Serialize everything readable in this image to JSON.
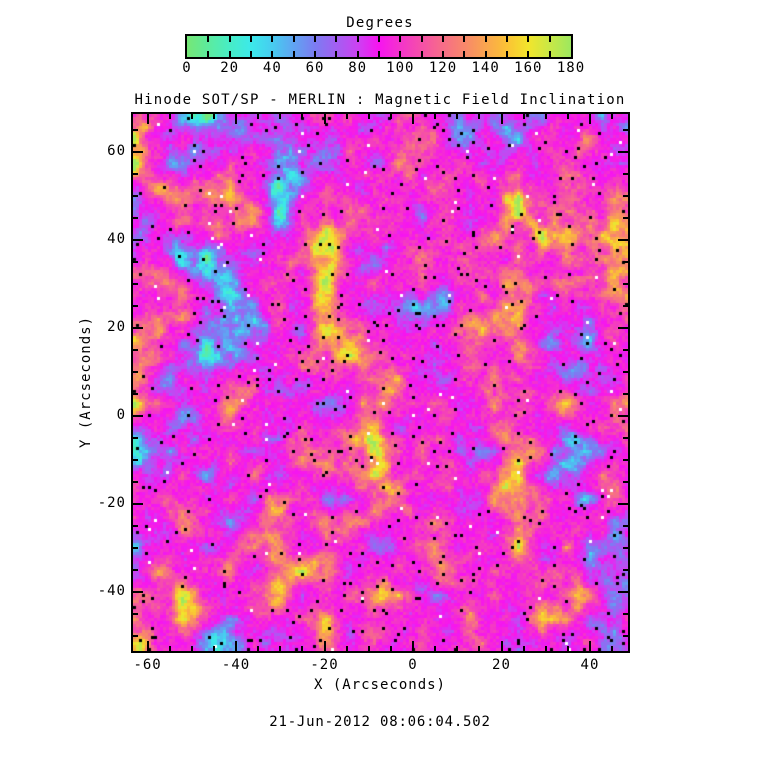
{
  "figure": {
    "background_color": "#ffffff",
    "text_color": "#000000"
  },
  "title": "Hinode SOT/SP - MERLIN : Magnetic Field Inclination",
  "timestamp": "21-Jun-2012 08:06:04.502",
  "colorbar": {
    "title": "Degrees",
    "min": 0,
    "max": 180,
    "tick_step": 10,
    "label_step": 20,
    "tick_labels": [
      "0",
      "20",
      "40",
      "60",
      "80",
      "100",
      "120",
      "140",
      "160",
      "180"
    ],
    "stops": [
      {
        "v": 0,
        "c": "#76e775"
      },
      {
        "v": 10,
        "c": "#5ceb9e"
      },
      {
        "v": 20,
        "c": "#47edc6"
      },
      {
        "v": 30,
        "c": "#3ce9ea"
      },
      {
        "v": 40,
        "c": "#47ccf0"
      },
      {
        "v": 50,
        "c": "#60a4f2"
      },
      {
        "v": 60,
        "c": "#7c7cf2"
      },
      {
        "v": 70,
        "c": "#a35ff2"
      },
      {
        "v": 80,
        "c": "#cb42f2"
      },
      {
        "v": 90,
        "c": "#f714f0"
      },
      {
        "v": 100,
        "c": "#f434cb"
      },
      {
        "v": 110,
        "c": "#f550a8"
      },
      {
        "v": 120,
        "c": "#f66d88"
      },
      {
        "v": 130,
        "c": "#f8876b"
      },
      {
        "v": 140,
        "c": "#f9a54f"
      },
      {
        "v": 150,
        "c": "#fbc235"
      },
      {
        "v": 160,
        "c": "#f2e52c"
      },
      {
        "v": 170,
        "c": "#c9e846"
      },
      {
        "v": 180,
        "c": "#9de85f"
      }
    ]
  },
  "chart_data": {
    "type": "heatmap",
    "title": "Hinode SOT/SP - MERLIN : Magnetic Field Inclination",
    "xlabel": "X (Arcseconds)",
    "ylabel": "Y (Arcseconds)",
    "xlim": [
      -63.3,
      48.6
    ],
    "ylim": [
      -53.4,
      68.6
    ],
    "xticks": [
      -60,
      -40,
      -20,
      0,
      20,
      40
    ],
    "yticks": [
      -40,
      -20,
      0,
      20,
      40,
      60
    ],
    "minor_tick_step": 5,
    "major_tick_step": 20,
    "grid": false,
    "legend_position": "colorbar-top",
    "colorbar_label": "Degrees",
    "value_units": "degrees",
    "value_range": [
      0,
      180
    ],
    "dominant_value": 94,
    "low_patch_values": [
      25,
      50
    ],
    "high_patch_values": [
      140,
      165
    ],
    "speckle_colors": [
      "#000000",
      "#ffffff"
    ],
    "content_summary": "Full-disk-quiet-Sun speckled inclination map: predominantly magenta (~90-100 deg) with scattered cyan-turquoise patches (~25-50 deg), yellow-orange patches (~140-165 deg), and sparse black and white single-pixel speckles."
  }
}
